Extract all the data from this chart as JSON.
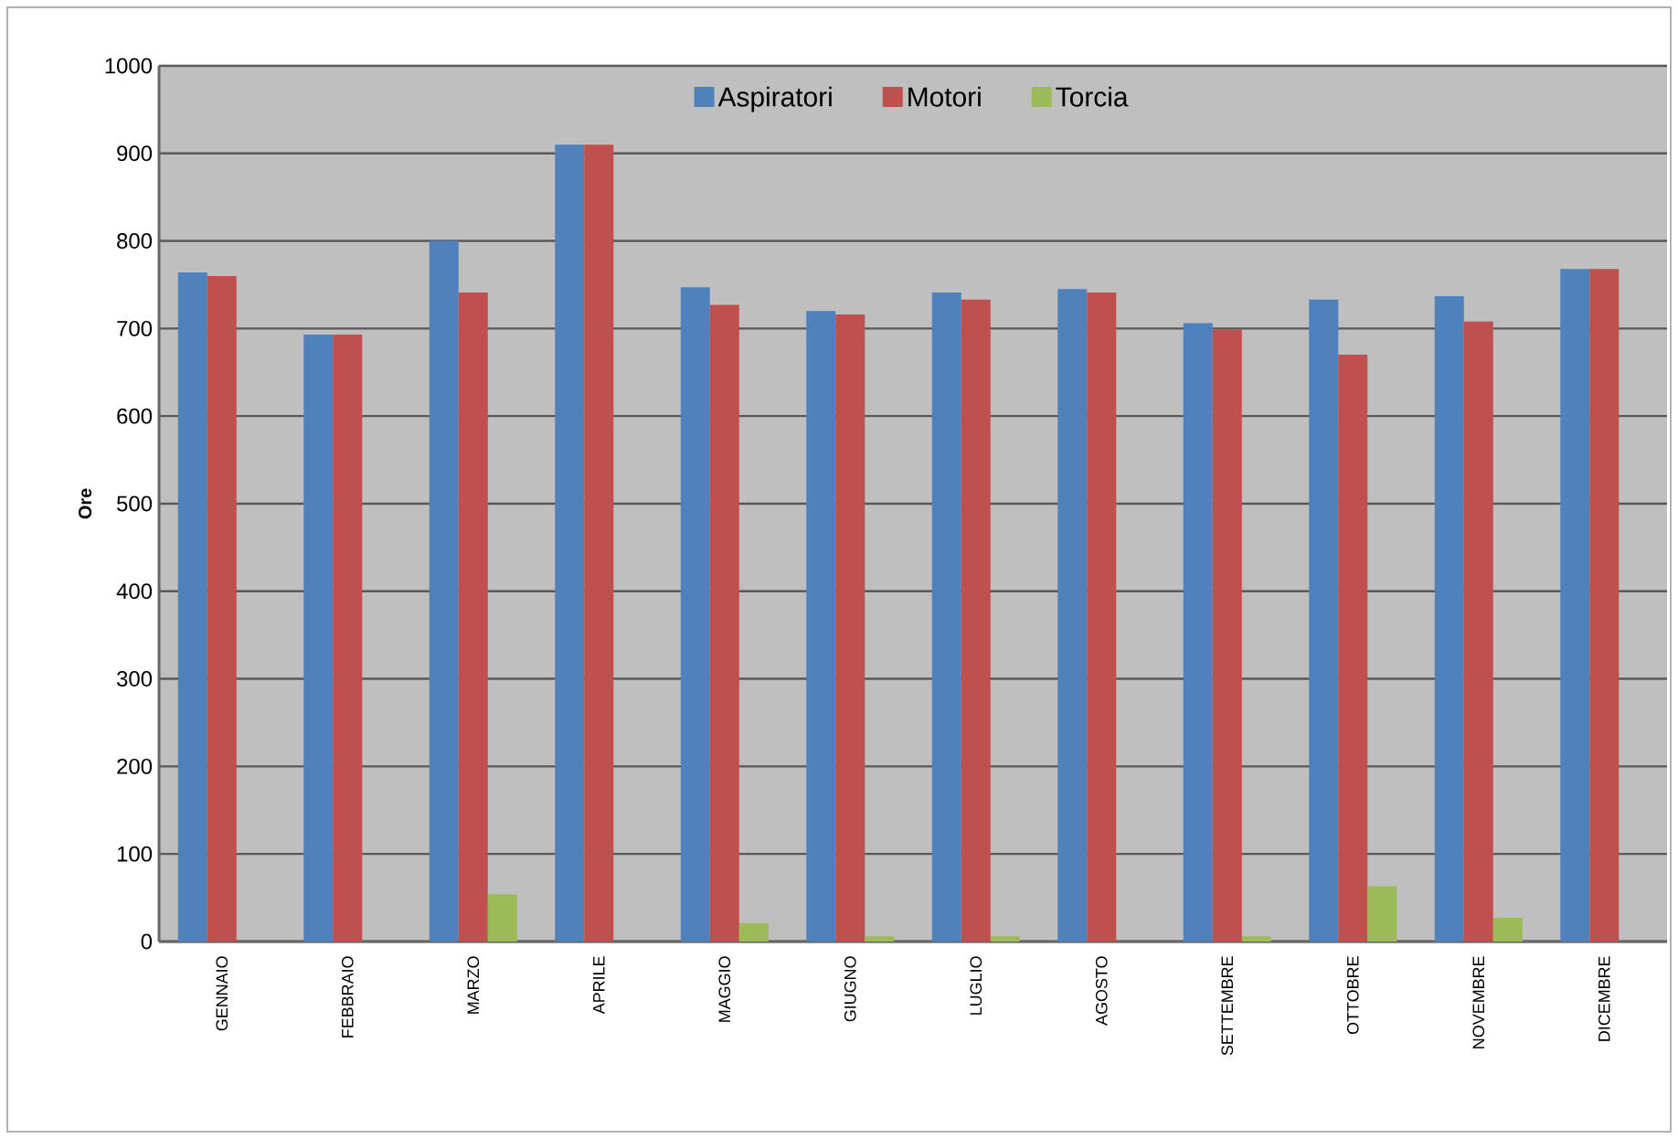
{
  "chart_data": {
    "type": "bar",
    "ylabel": "Ore",
    "categories": [
      "GENNAIO",
      "FEBBRAIO",
      "MARZO",
      "APRILE",
      "MAGGIO",
      "GIUGNO",
      "LUGLIO",
      "AGOSTO",
      "SETTEMBRE",
      "OTTOBRE",
      "NOVEMBRE",
      "DICEMBRE"
    ],
    "series": [
      {
        "name": "Aspiratori",
        "color": "#4f81bd",
        "values": [
          764,
          693,
          800,
          910,
          747,
          720,
          741,
          745,
          706,
          733,
          737,
          768
        ]
      },
      {
        "name": "Motori",
        "color": "#c0504d",
        "values": [
          760,
          693,
          741,
          910,
          727,
          716,
          733,
          741,
          699,
          670,
          708,
          768
        ]
      },
      {
        "name": "Torcia",
        "color": "#9bbb59",
        "values": [
          0,
          0,
          54,
          0,
          21,
          6,
          6,
          0,
          6,
          63,
          27,
          0
        ]
      }
    ],
    "ylim": [
      0,
      1000
    ],
    "yticks": [
      0,
      100,
      200,
      300,
      400,
      500,
      600,
      700,
      800,
      900,
      1000
    ],
    "grid": "y",
    "legend": "top"
  }
}
